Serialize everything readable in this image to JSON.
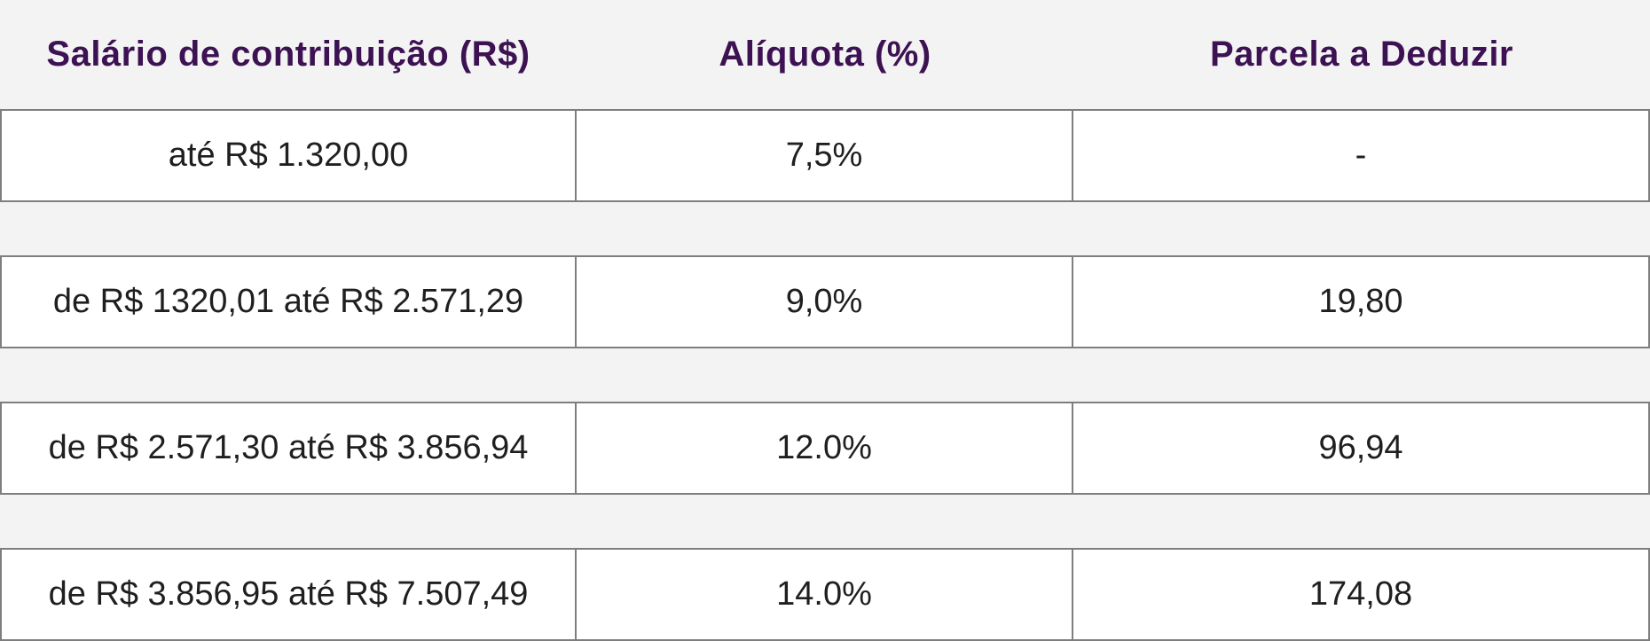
{
  "chart_data": {
    "type": "table",
    "columns": [
      "Salário de contribuição (R$)",
      "Alíquota (%)",
      "Parcela a Deduzir"
    ],
    "rows": [
      [
        "até R$ 1.320,00",
        "7,5%",
        "-"
      ],
      [
        "de R$ 1320,01 até R$ 2.571,29",
        "9,0%",
        "19,80"
      ],
      [
        "de R$ 2.571,30 até R$ 3.856,94",
        "12.0%",
        "96,94"
      ],
      [
        "de R$ 3.856,95 até R$ 7.507,49",
        "14.0%",
        "174,08"
      ]
    ],
    "layout": {
      "grid": "off",
      "row_style": "separated-boxes"
    }
  },
  "colors": {
    "page_background": "#f3f3f3",
    "header_text": "#3d1253",
    "cell_background": "#ffffff",
    "cell_text": "#1f1f1f",
    "border": "#7e7e7e"
  }
}
